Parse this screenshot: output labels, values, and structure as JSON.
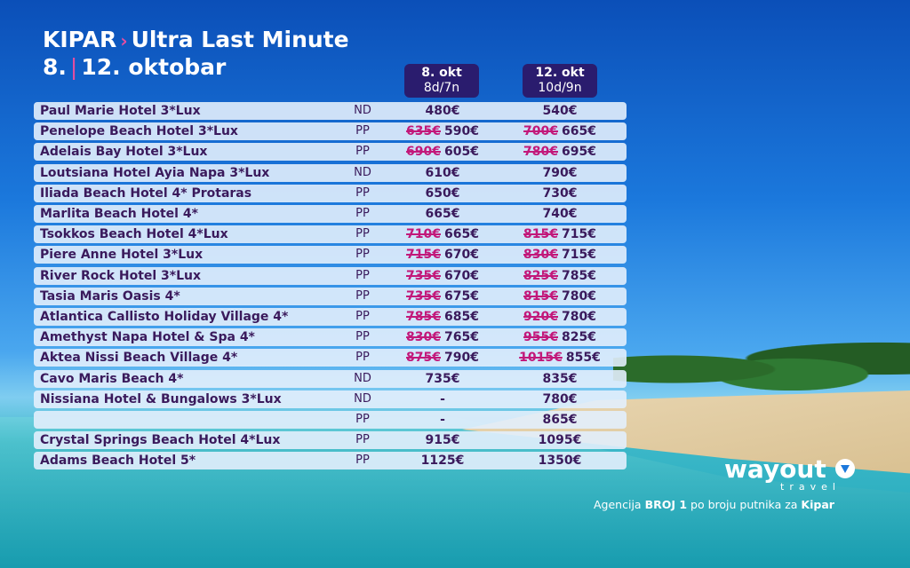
{
  "header": {
    "destination": "KIPAR",
    "separator": "›",
    "offer": "Ultra Last Minute",
    "date_start": "8.",
    "date_end": "12. oktobar"
  },
  "columns": [
    {
      "date": "8. okt",
      "duration": "8d/7n"
    },
    {
      "date": "12. okt",
      "duration": "10d/9n"
    }
  ],
  "rows": [
    {
      "hotel": "Paul Marie Hotel 3*Lux",
      "board": "ND",
      "prices": [
        {
          "price": "480€"
        },
        {
          "price": "540€"
        }
      ]
    },
    {
      "hotel": "Penelope Beach Hotel 3*Lux",
      "board": "PP",
      "prices": [
        {
          "old": "635€",
          "price": "590€"
        },
        {
          "old": "700€",
          "price": "665€"
        }
      ]
    },
    {
      "hotel": "Adelais Bay Hotel 3*Lux",
      "board": "PP",
      "prices": [
        {
          "old": "690€",
          "price": "605€"
        },
        {
          "old": "780€",
          "price": "695€"
        }
      ]
    },
    {
      "hotel": "Loutsiana Hotel Ayia Napa 3*Lux",
      "board": "ND",
      "prices": [
        {
          "price": "610€"
        },
        {
          "price": "790€"
        }
      ]
    },
    {
      "hotel": "Iliada Beach Hotel 4* Protaras",
      "board": "PP",
      "prices": [
        {
          "price": "650€"
        },
        {
          "price": "730€"
        }
      ]
    },
    {
      "hotel": "Marlita Beach Hotel 4*",
      "board": "PP",
      "prices": [
        {
          "price": "665€"
        },
        {
          "price": "740€"
        }
      ]
    },
    {
      "hotel": "Tsokkos Beach Hotel 4*Lux",
      "board": "PP",
      "prices": [
        {
          "old": "710€",
          "price": "665€"
        },
        {
          "old": "815€",
          "price": "715€"
        }
      ]
    },
    {
      "hotel": "Piere Anne Hotel 3*Lux",
      "board": "PP",
      "prices": [
        {
          "old": "715€",
          "price": "670€"
        },
        {
          "old": "830€",
          "price": "715€"
        }
      ]
    },
    {
      "hotel": "River Rock Hotel 3*Lux",
      "board": "PP",
      "prices": [
        {
          "old": "735€",
          "price": "670€"
        },
        {
          "old": "825€",
          "price": "785€"
        }
      ]
    },
    {
      "hotel": "Tasia Maris Oasis 4*",
      "board": "PP",
      "prices": [
        {
          "old": "735€",
          "price": "675€"
        },
        {
          "old": "815€",
          "price": "780€"
        }
      ]
    },
    {
      "hotel": "Atlantica Callisto Holiday Village 4*",
      "board": "PP",
      "prices": [
        {
          "old": "785€",
          "price": "685€"
        },
        {
          "old": "920€",
          "price": "780€"
        }
      ]
    },
    {
      "hotel": "Amethyst Napa Hotel & Spa 4*",
      "board": "PP",
      "prices": [
        {
          "old": "830€",
          "price": "765€"
        },
        {
          "old": "955€",
          "price": "825€"
        }
      ]
    },
    {
      "hotel": "Aktea Nissi Beach Village 4*",
      "board": "PP",
      "prices": [
        {
          "old": "875€",
          "price": "790€"
        },
        {
          "old": "1015€",
          "price": "855€"
        }
      ]
    },
    {
      "hotel": "Cavo Maris Beach 4*",
      "board": "ND",
      "prices": [
        {
          "price": "735€"
        },
        {
          "price": "835€"
        }
      ]
    },
    {
      "hotel": "Nissiana Hotel & Bungalows 3*Lux",
      "board": "ND",
      "prices": [
        {
          "price": "-"
        },
        {
          "price": "780€"
        }
      ]
    },
    {
      "board": "PP",
      "prices": [
        {
          "price": "-"
        },
        {
          "price": "865€"
        }
      ]
    },
    {
      "hotel": "Crystal Springs Beach Hotel 4*Lux",
      "board": "PP",
      "prices": [
        {
          "price": "915€"
        },
        {
          "price": "1095€"
        }
      ]
    },
    {
      "hotel": "Adams Beach Hotel 5*",
      "board": "PP",
      "prices": [
        {
          "price": "1125€"
        },
        {
          "price": "1350€"
        }
      ]
    }
  ],
  "footer": {
    "logo": "wayout",
    "logo_sub": "travel",
    "tagline": [
      "Agencija ",
      "BROJ 1",
      " po broju putnika za ",
      "Kipar"
    ]
  }
}
